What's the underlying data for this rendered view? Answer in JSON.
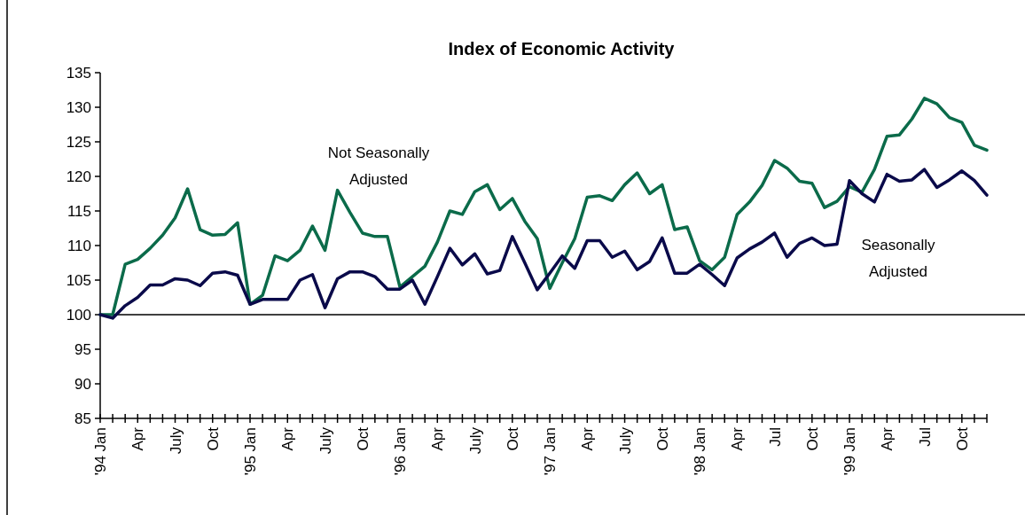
{
  "chart_data": {
    "type": "line",
    "title": "Index of Economic Activity",
    "categories": [
      "'94 Jan",
      null,
      null,
      "Apr",
      null,
      null,
      "July",
      null,
      null,
      "Oct",
      null,
      null,
      "'95 Jan",
      null,
      null,
      "Apr",
      null,
      null,
      "July",
      null,
      null,
      "Oct",
      null,
      null,
      "'96 Jan",
      null,
      null,
      "Apr",
      null,
      null,
      "July",
      null,
      null,
      "Oct",
      null,
      null,
      "'97 Jan",
      null,
      null,
      "Apr",
      null,
      null,
      "July",
      null,
      null,
      "Oct",
      null,
      null,
      "'98 Jan",
      null,
      null,
      "Apr",
      null,
      null,
      "Jul",
      null,
      null,
      "Oct",
      null,
      null,
      "'99 Jan",
      null,
      null,
      "Apr",
      null,
      null,
      "Jul",
      null,
      null,
      "Oct",
      null,
      null
    ],
    "series": [
      {
        "name": "Not Seasonally Adjusted",
        "color": "#0b6b4a",
        "values": [
          100,
          100,
          107.3,
          108,
          109.6,
          111.5,
          114,
          118.2,
          112.3,
          111.5,
          111.6,
          113.3,
          101.5,
          102.8,
          108.5,
          107.8,
          109.3,
          112.8,
          109.3,
          118,
          114.8,
          111.8,
          111.3,
          111.3,
          104,
          105.5,
          107,
          110.5,
          115,
          114.5,
          117.8,
          118.8,
          115.2,
          116.8,
          113.5,
          111,
          103.8,
          107.5,
          111,
          117,
          117.2,
          116.5,
          118.8,
          120.5,
          117.5,
          118.8,
          112.3,
          112.7,
          107.8,
          106.5,
          108.3,
          114.5,
          116.3,
          118.7,
          122.3,
          121.2,
          119.3,
          119,
          115.5,
          116.4,
          118.5,
          117.7,
          121,
          125.8,
          126,
          128.3,
          131.3,
          130.5,
          128.5,
          127.8,
          124.5,
          123.8
        ]
      },
      {
        "name": "Seasonally Adjusted",
        "color": "#0a0a4a",
        "values": [
          100,
          99.5,
          101.3,
          102.5,
          104.3,
          104.3,
          105.2,
          105,
          104.2,
          106,
          106.2,
          105.7,
          101.5,
          102.2,
          102.2,
          102.2,
          105,
          105.8,
          101,
          105.2,
          106.2,
          106.2,
          105.5,
          103.7,
          103.7,
          105,
          101.5,
          105.5,
          109.6,
          107.2,
          108.8,
          105.9,
          106.4,
          111.3,
          107.5,
          103.6,
          106,
          108.5,
          106.7,
          110.7,
          110.7,
          108.3,
          109.2,
          106.5,
          107.7,
          111.1,
          106,
          106,
          107.3,
          105.8,
          104.2,
          108.2,
          109.5,
          110.5,
          111.8,
          108.3,
          110.3,
          111.1,
          110,
          110.2,
          119.4,
          117.5,
          116.3,
          120.3,
          119.3,
          119.5,
          121,
          118.4,
          119.5,
          120.8,
          119.4,
          117.3
        ]
      }
    ],
    "ylim": [
      85,
      135
    ],
    "yticks": [
      85,
      90,
      95,
      100,
      105,
      110,
      115,
      120,
      125,
      130,
      135
    ],
    "ref_lines": [
      {
        "axis": "y",
        "value": 100
      }
    ],
    "legend": false,
    "grid": false
  }
}
